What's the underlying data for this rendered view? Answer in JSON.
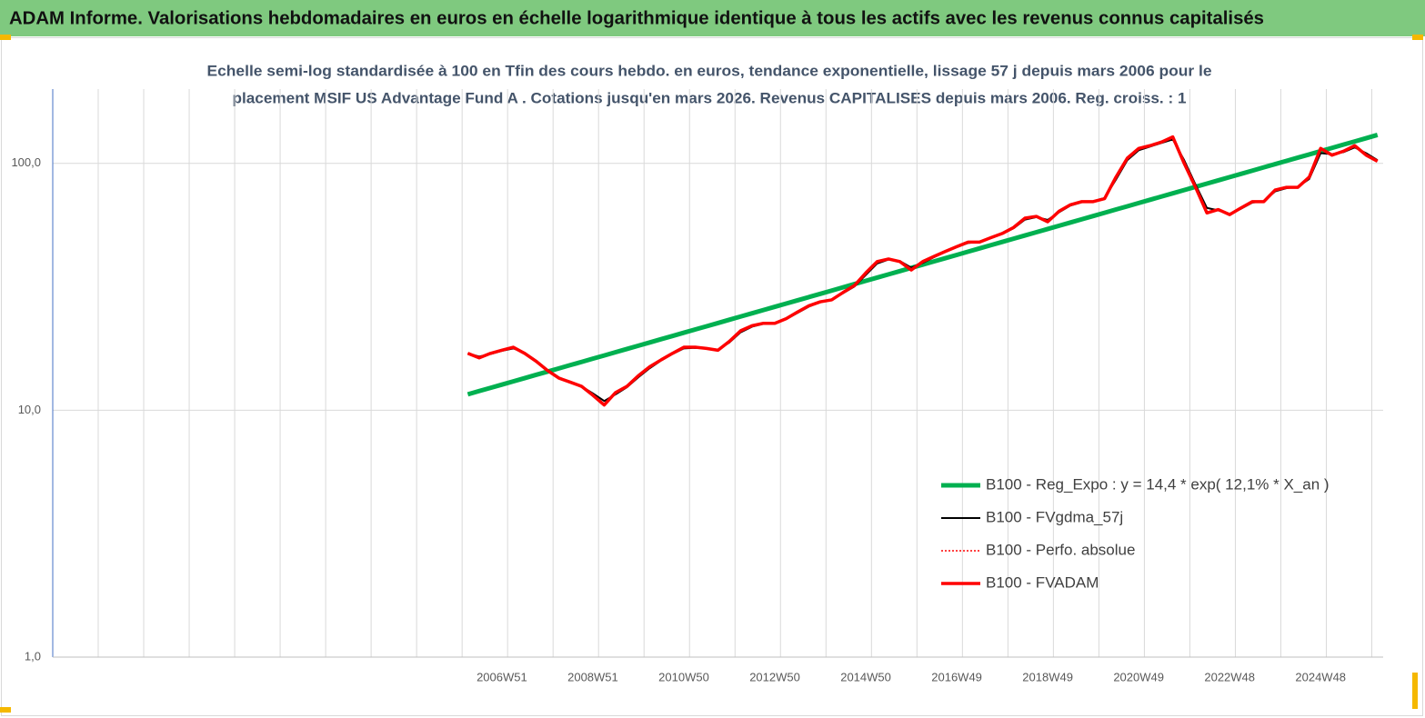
{
  "chart_data": {
    "type": "line",
    "title": "ADAM Informe. Valorisations hebdomadaires en euros en échelle logarithmique identique à tous les actifs avec les revenus connus capitalisés",
    "subtitle": [
      "Echelle semi-log standardisée à 100 en Tfin des cours hebdo. en euros, tendance exponentielle, lissage 57 j depuis mars 2006 pour le",
      "placement MSIF US Advantage Fund A . Cotations jusqu'en mars 2026. Revenus CAPITALISES depuis mars 2006. Reg. croiss. : 1"
    ],
    "log_scale": true,
    "grid": true,
    "legend": "lower right",
    "ylim": [
      1,
      200
    ],
    "yticks": [
      {
        "value": 1,
        "label": "1,0"
      },
      {
        "value": 10,
        "label": "10,0"
      },
      {
        "value": 100,
        "label": "100,0"
      }
    ],
    "categories": [
      null,
      null,
      null,
      null,
      null,
      null,
      null,
      null,
      null,
      null,
      null,
      null,
      null,
      null,
      null,
      null,
      null,
      null,
      null,
      null,
      null,
      null,
      null,
      null,
      null,
      null,
      null,
      null,
      null,
      null,
      null,
      null,
      null,
      null,
      null,
      null,
      null,
      null,
      null,
      "2006W51",
      null,
      null,
      null,
      null,
      null,
      null,
      null,
      "2008W51",
      null,
      null,
      null,
      null,
      null,
      null,
      null,
      "2010W50",
      null,
      null,
      null,
      null,
      null,
      null,
      null,
      "2012W50",
      null,
      null,
      null,
      null,
      null,
      null,
      null,
      "2014W50",
      null,
      null,
      null,
      null,
      null,
      null,
      null,
      "2016W49",
      null,
      null,
      null,
      null,
      null,
      null,
      null,
      "2018W49",
      null,
      null,
      null,
      null,
      null,
      null,
      null,
      "2020W49",
      null,
      null,
      null,
      null,
      null,
      null,
      null,
      "2022W48",
      null,
      null,
      null,
      null,
      null,
      null,
      null,
      "2024W48",
      null,
      null,
      null,
      null,
      null
    ],
    "series": [
      {
        "name": "B100 - Reg_Expo : y = 14,4 * exp( 12,1% *  X_an )",
        "color": "#00b050",
        "width": 5,
        "dash": false,
        "values": [
          null,
          null,
          null,
          null,
          null,
          null,
          null,
          null,
          null,
          null,
          null,
          null,
          null,
          null,
          null,
          null,
          null,
          null,
          null,
          null,
          null,
          null,
          null,
          null,
          null,
          null,
          null,
          null,
          null,
          null,
          null,
          null,
          null,
          null,
          null,
          null,
          11.6,
          11.96,
          12.32,
          12.7,
          13.09,
          13.49,
          13.91,
          14.33,
          14.77,
          15.23,
          15.69,
          16.18,
          16.67,
          17.19,
          17.71,
          18.26,
          18.82,
          19.4,
          19.99,
          20.61,
          21.24,
          21.89,
          22.56,
          23.26,
          23.97,
          24.71,
          25.47,
          26.25,
          27.05,
          27.88,
          28.74,
          29.62,
          30.53,
          31.47,
          32.44,
          33.43,
          34.46,
          35.52,
          36.61,
          37.73,
          38.89,
          40.08,
          41.31,
          42.58,
          43.89,
          45.24,
          46.63,
          48.06,
          49.53,
          51.05,
          52.62,
          54.24,
          55.9,
          57.62,
          59.39,
          61.21,
          63.09,
          65.03,
          67.02,
          69.08,
          71.2,
          73.39,
          75.64,
          77.97,
          80.36,
          82.83,
          85.37,
          87.99,
          90.69,
          93.48,
          96.35,
          99.31,
          102.4,
          105.5,
          108.7,
          112.1,
          115.5,
          119.1,
          122.7,
          126.5,
          130.4
        ]
      },
      {
        "name": "B100 - FVgdma_57j",
        "color": "#000000",
        "width": 2,
        "dash": false,
        "values": [
          null,
          null,
          null,
          null,
          null,
          null,
          null,
          null,
          null,
          null,
          null,
          null,
          null,
          null,
          null,
          null,
          null,
          null,
          null,
          null,
          null,
          null,
          null,
          null,
          null,
          null,
          null,
          null,
          null,
          null,
          null,
          null,
          null,
          null,
          null,
          null,
          17,
          16.5,
          16.9,
          17.4,
          17.8,
          17.1,
          15.9,
          14.6,
          13.6,
          13,
          12.5,
          11.7,
          10.9,
          11.6,
          12.4,
          13.6,
          14.8,
          15.9,
          16.9,
          17.8,
          17.9,
          17.8,
          17.6,
          18.8,
          20.7,
          21.8,
          22.4,
          22.6,
          23.4,
          24.8,
          26.3,
          27.4,
          28.1,
          29.8,
          31.7,
          35.3,
          39.3,
          40.8,
          40.2,
          37.8,
          39.5,
          41.7,
          43.8,
          45.8,
          47.6,
          48.2,
          49.8,
          51.8,
          54.6,
          59.2,
          60.6,
          59,
          63.4,
          67.5,
          69.6,
          70.2,
          72.4,
          86,
          103,
          113,
          117,
          121,
          125,
          103,
          82,
          66,
          64.5,
          62.5,
          65.5,
          69.4,
          70.3,
          77,
          79.4,
          80.4,
          86.5,
          110,
          109,
          111,
          116,
          110,
          103
        ]
      },
      {
        "name": "B100 - Perfo. absolue",
        "color": "#ff0000",
        "width": 1.5,
        "dash": true,
        "values": [
          null,
          null,
          null,
          null,
          null,
          null,
          null,
          null,
          null,
          null,
          null,
          null,
          null,
          null,
          null,
          null,
          null,
          null,
          null,
          null,
          null,
          null,
          null,
          null,
          null,
          null,
          null,
          null,
          null,
          null,
          null,
          null,
          null,
          null,
          null,
          null,
          17,
          16.3,
          17,
          17.5,
          18,
          17,
          15.8,
          14.5,
          13.5,
          13,
          12.5,
          11.5,
          10.5,
          11.8,
          12.5,
          13.8,
          15,
          16,
          17,
          18,
          18,
          17.8,
          17.5,
          19,
          21,
          22,
          22.5,
          22.5,
          23.5,
          25,
          26.5,
          27.5,
          28,
          30,
          32,
          36,
          40,
          41,
          40,
          37,
          40,
          42,
          44,
          46,
          48,
          48,
          50,
          52,
          55,
          60,
          61,
          58,
          64,
          68,
          70,
          70,
          72,
          88,
          105,
          115,
          118,
          122,
          128,
          100,
          80,
          63,
          65,
          62,
          66,
          70,
          70,
          78,
          80,
          80,
          88,
          115,
          108,
          112,
          118,
          108,
          102
        ]
      },
      {
        "name": "B100 - FVADAM",
        "color": "#ff0000",
        "width": 3.5,
        "dash": false,
        "values": [
          null,
          null,
          null,
          null,
          null,
          null,
          null,
          null,
          null,
          null,
          null,
          null,
          null,
          null,
          null,
          null,
          null,
          null,
          null,
          null,
          null,
          null,
          null,
          null,
          null,
          null,
          null,
          null,
          null,
          null,
          null,
          null,
          null,
          null,
          null,
          null,
          17,
          16.3,
          17,
          17.5,
          18,
          17,
          15.8,
          14.5,
          13.5,
          13,
          12.5,
          11.5,
          10.5,
          11.8,
          12.5,
          13.8,
          15,
          16,
          17,
          18,
          18,
          17.8,
          17.5,
          19,
          21,
          22,
          22.5,
          22.5,
          23.5,
          25,
          26.5,
          27.5,
          28,
          30,
          32,
          36,
          40,
          41,
          40,
          37,
          40,
          42,
          44,
          46,
          48,
          48,
          50,
          52,
          55,
          60,
          61,
          58,
          64,
          68,
          70,
          70,
          72,
          88,
          105,
          115,
          118,
          122,
          128,
          100,
          80,
          63,
          65,
          62,
          66,
          70,
          70,
          78,
          80,
          80,
          88,
          115,
          108,
          112,
          118,
          108,
          102
        ]
      }
    ]
  }
}
